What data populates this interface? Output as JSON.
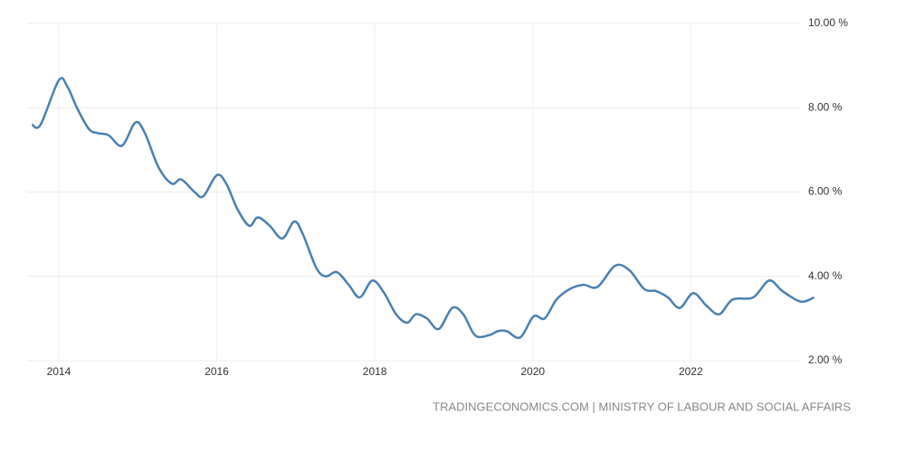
{
  "chart_data": {
    "type": "line",
    "source": "TRADINGECONOMICS.COM | MINISTRY OF LABOUR AND SOCIAL AFFAIRS",
    "x": [
      2013.66,
      2013.77,
      2014.0,
      2014.11,
      2014.23,
      2014.38,
      2014.49,
      2014.63,
      2014.8,
      2014.97,
      2015.09,
      2015.26,
      2015.43,
      2015.55,
      2015.72,
      2015.83,
      2016.0,
      2016.12,
      2016.26,
      2016.41,
      2016.52,
      2016.67,
      2016.83,
      2016.98,
      2017.09,
      2017.26,
      2017.38,
      2017.52,
      2017.67,
      2017.81,
      2017.97,
      2018.12,
      2018.27,
      2018.41,
      2018.52,
      2018.66,
      2018.81,
      2018.98,
      2019.12,
      2019.27,
      2019.44,
      2019.56,
      2019.67,
      2019.84,
      2020.01,
      2020.15,
      2020.3,
      2020.47,
      2020.64,
      2020.82,
      2021.04,
      2021.22,
      2021.41,
      2021.56,
      2021.71,
      2021.86,
      2022.03,
      2022.2,
      2022.36,
      2022.53,
      2022.79,
      2022.99,
      2023.16,
      2023.39,
      2023.56
    ],
    "series": [
      {
        "color": "#4a80b0",
        "values": [
          7.6,
          7.6,
          8.65,
          8.5,
          8.0,
          7.5,
          7.4,
          7.35,
          7.1,
          7.65,
          7.4,
          6.6,
          6.2,
          6.3,
          6.0,
          5.9,
          6.4,
          6.2,
          5.6,
          5.2,
          5.4,
          5.2,
          4.9,
          5.3,
          5.0,
          4.2,
          4.0,
          4.1,
          3.8,
          3.5,
          3.9,
          3.6,
          3.1,
          2.9,
          3.1,
          3.0,
          2.75,
          3.25,
          3.1,
          2.6,
          2.6,
          2.7,
          2.7,
          2.55,
          3.05,
          3.0,
          3.45,
          3.7,
          3.8,
          3.75,
          4.25,
          4.15,
          3.7,
          3.65,
          3.5,
          3.25,
          3.6,
          3.3,
          3.1,
          3.45,
          3.5,
          3.9,
          3.65,
          3.4,
          3.5
        ]
      }
    ],
    "xlim": [
      2013.6,
      2023.6
    ],
    "xticks": [
      2014,
      2016,
      2018,
      2020,
      2022
    ],
    "ylim": [
      2,
      10
    ],
    "yticks": [
      {
        "value": 2,
        "label": "2.00 %"
      },
      {
        "value": 4,
        "label": "4.00 %"
      },
      {
        "value": 6,
        "label": "6.00 %"
      },
      {
        "value": 8,
        "label": "8.00 %"
      },
      {
        "value": 10,
        "label": "10.00 %"
      }
    ],
    "grid": true
  }
}
